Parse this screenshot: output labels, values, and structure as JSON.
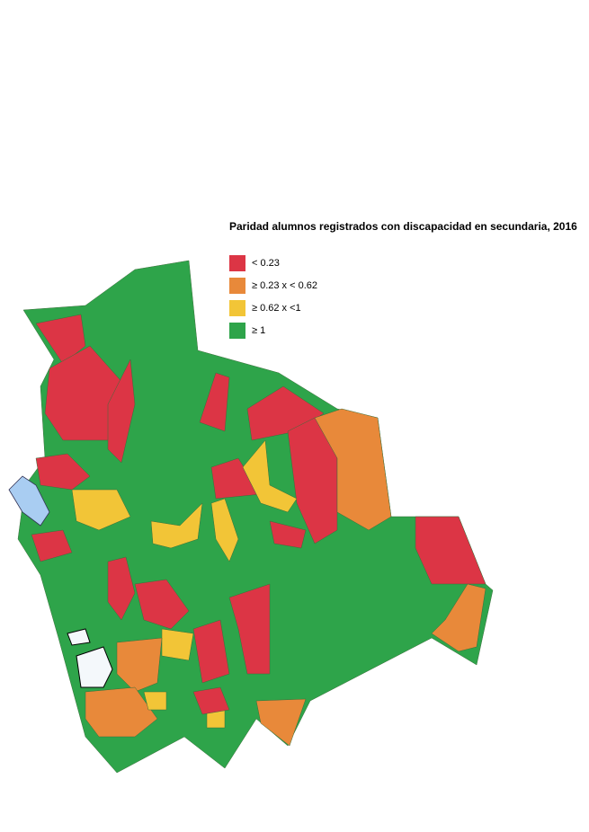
{
  "title": "Paridad alumnos registrados con discapacidad en secundaria, 2016",
  "legend": [
    {
      "label": "< 0.23",
      "color": "#dc3545"
    },
    {
      "label": "≥ 0.23 x < 0.62",
      "color": "#e8893a"
    },
    {
      "label": "≥ 0.62 x <1",
      "color": "#f2c537"
    },
    {
      "label": "≥ 1",
      "color": "#2ea44a"
    }
  ]
}
